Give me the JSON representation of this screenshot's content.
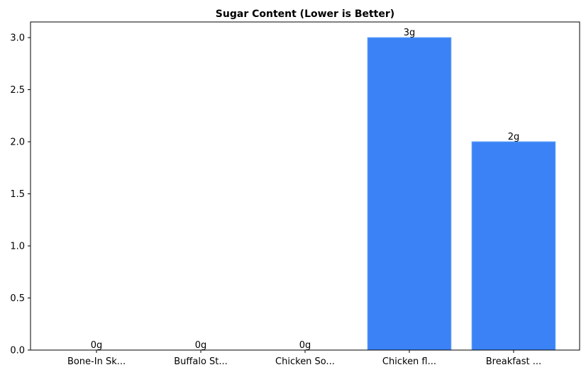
{
  "chart_data": {
    "type": "bar",
    "title": "Sugar Content (Lower is Better)",
    "xlabel": "",
    "ylabel": "",
    "categories": [
      "Bone-In Sk...",
      "Buffalo St...",
      "Chicken So...",
      "Chicken fl...",
      "Breakfast ..."
    ],
    "values": [
      0,
      0,
      0,
      3,
      2
    ],
    "data_labels": [
      "0g",
      "0g",
      "0g",
      "3g",
      "2g"
    ],
    "ylim": [
      0,
      3.15
    ],
    "yticks": [
      0.0,
      0.5,
      1.0,
      1.5,
      2.0,
      2.5,
      3.0
    ],
    "ytick_labels": [
      "0.0",
      "0.5",
      "1.0",
      "1.5",
      "2.0",
      "2.5",
      "3.0"
    ],
    "grid": false,
    "bar_color": "#3b82f6",
    "bar_edge_color": "#60a5fa"
  }
}
